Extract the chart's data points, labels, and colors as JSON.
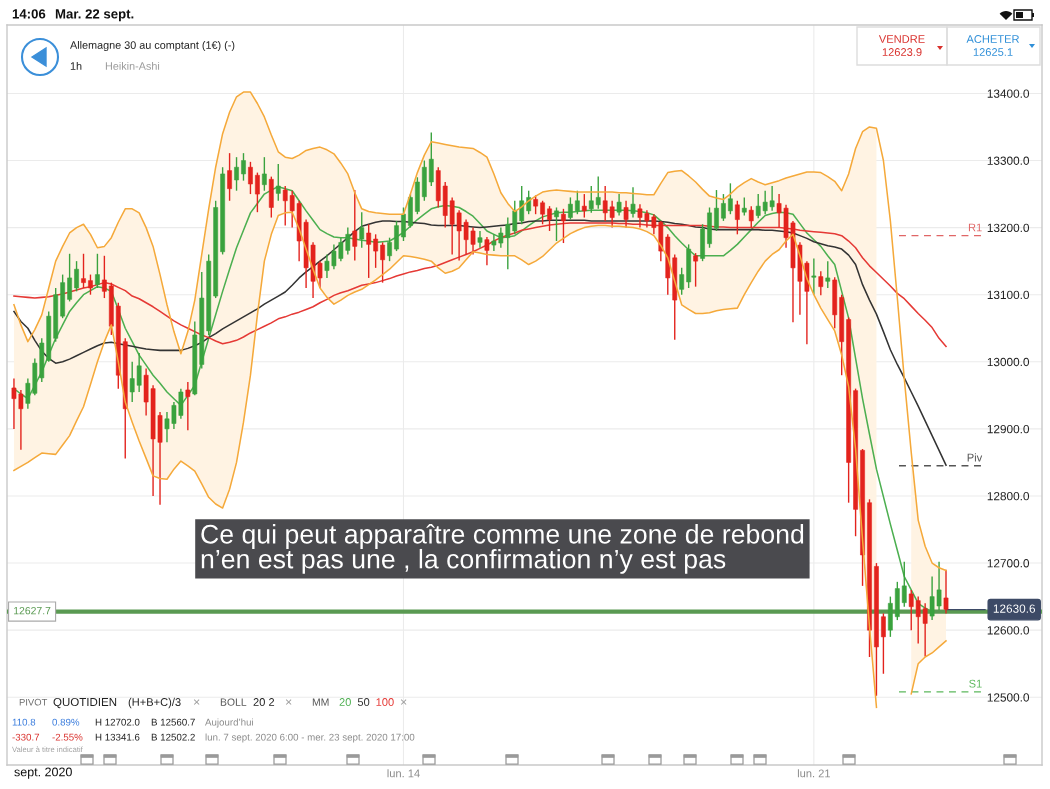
{
  "chart_data": {
    "type": "candlestick",
    "title": "Allemagne 30 au comptant (1€) (-)",
    "subtitle": "1h",
    "xlabel": "sept. 2020",
    "categories": [
      null,
      null,
      null,
      null,
      null,
      null,
      null,
      null,
      null,
      null,
      null,
      null,
      null,
      null,
      null,
      null,
      null,
      null,
      null,
      null,
      null,
      null,
      null,
      null,
      null,
      null,
      null,
      null,
      null,
      null,
      null,
      null,
      null,
      null,
      null,
      null,
      null,
      null,
      null,
      null,
      null,
      null,
      null,
      null,
      null,
      null,
      null,
      null,
      null,
      null,
      null,
      null,
      null,
      null,
      null,
      null,
      "lun. 14",
      null,
      null,
      null,
      null,
      null,
      null,
      null,
      null,
      null,
      null,
      null,
      null,
      null,
      null,
      null,
      null,
      null,
      null,
      null,
      null,
      null,
      null,
      null,
      null,
      null,
      null,
      null,
      null,
      null,
      null,
      null,
      null,
      null,
      null,
      null,
      null,
      null,
      null,
      null,
      null,
      null,
      null,
      null,
      null,
      null,
      null,
      null,
      null,
      null,
      null,
      null,
      null,
      null,
      null,
      null,
      null,
      null,
      null,
      "lun. 21",
      null,
      null,
      null,
      null,
      null,
      null,
      null,
      null,
      null,
      null,
      null,
      null,
      null,
      null,
      null,
      null,
      null,
      null,
      null
    ],
    "ohlc": [
      [
        12961,
        12975,
        12900,
        12945
      ],
      [
        12952,
        12958,
        12869,
        12930
      ],
      [
        12938,
        12975,
        12930,
        12968
      ],
      [
        12953,
        13005,
        12950,
        12998
      ],
      [
        12976,
        13035,
        12970,
        13028
      ],
      [
        13002,
        13075,
        13000,
        13068
      ],
      [
        13035,
        13110,
        13030,
        13100
      ],
      [
        13068,
        13130,
        13065,
        13118
      ],
      [
        13093,
        13161,
        13090,
        13125
      ],
      [
        13110,
        13150,
        13105,
        13138
      ],
      [
        13124,
        13161,
        13110,
        13118
      ],
      [
        13121,
        13130,
        13100,
        13110
      ],
      [
        13115,
        13161,
        13110,
        13130
      ],
      [
        13122,
        13158,
        13095,
        13105
      ],
      [
        13113,
        13118,
        13040,
        13053
      ],
      [
        13083,
        13088,
        12960,
        12980
      ],
      [
        13030,
        13035,
        12856,
        12930
      ],
      [
        12955,
        13000,
        12940,
        12975
      ],
      [
        12965,
        13013,
        12955,
        12994
      ],
      [
        12980,
        12990,
        12920,
        12940
      ],
      [
        12960,
        12965,
        12800,
        12885
      ],
      [
        12920,
        12925,
        12787,
        12880
      ],
      [
        12900,
        12925,
        12880,
        12915
      ],
      [
        12908,
        12940,
        12900,
        12935
      ],
      [
        12920,
        12960,
        12915,
        12955
      ],
      [
        12958,
        12970,
        12898,
        12948
      ],
      [
        12952,
        13060,
        12950,
        13040
      ],
      [
        12996,
        13134,
        12990,
        13095
      ],
      [
        13046,
        13160,
        13040,
        13150
      ],
      [
        13098,
        13240,
        13095,
        13230
      ],
      [
        13164,
        13290,
        13160,
        13280
      ],
      [
        13285,
        13311,
        13240,
        13258
      ],
      [
        13271,
        13305,
        13255,
        13290
      ],
      [
        13280,
        13311,
        13270,
        13300
      ],
      [
        13290,
        13298,
        13250,
        13265
      ],
      [
        13278,
        13282,
        13223,
        13250
      ],
      [
        13264,
        13305,
        13255,
        13280
      ],
      [
        13272,
        13276,
        13215,
        13230
      ],
      [
        13251,
        13295,
        13240,
        13262
      ],
      [
        13256,
        13262,
        13203,
        13240
      ],
      [
        13248,
        13255,
        13200,
        13225
      ],
      [
        13236,
        13240,
        13150,
        13180
      ],
      [
        13208,
        13212,
        13110,
        13140
      ],
      [
        13174,
        13178,
        13095,
        13120
      ],
      [
        13147,
        13150,
        13110,
        13125
      ],
      [
        13136,
        13160,
        13125,
        13150
      ],
      [
        13143,
        13175,
        13138,
        13165
      ],
      [
        13154,
        13185,
        13150,
        13178
      ],
      [
        13166,
        13200,
        13160,
        13190
      ],
      [
        13195,
        13256,
        13151,
        13172
      ],
      [
        13183,
        13223,
        13170,
        13200
      ],
      [
        13192,
        13205,
        13125,
        13175
      ],
      [
        13183,
        13190,
        13140,
        13165
      ],
      [
        13174,
        13178,
        13118,
        13152
      ],
      [
        13158,
        13185,
        13150,
        13178
      ],
      [
        13168,
        13210,
        13165,
        13203
      ],
      [
        13186,
        13230,
        13180,
        13220
      ],
      [
        13203,
        13250,
        13200,
        13245
      ],
      [
        13224,
        13275,
        13220,
        13268
      ],
      [
        13246,
        13300,
        13240,
        13290
      ],
      [
        13268,
        13341.6,
        13262,
        13302
      ],
      [
        13285,
        13290,
        13230,
        13240
      ],
      [
        13262,
        13268,
        13200,
        13218
      ],
      [
        13240,
        13245,
        13160,
        13205
      ],
      [
        13222,
        13226,
        13151,
        13195
      ],
      [
        13208,
        13212,
        13160,
        13182
      ],
      [
        13195,
        13200,
        13160,
        13175
      ],
      [
        13178,
        13195,
        13170,
        13185
      ],
      [
        13182,
        13186,
        13144,
        13166
      ],
      [
        13174,
        13190,
        13165,
        13180
      ],
      [
        13177,
        13200,
        13170,
        13192
      ],
      [
        13185,
        13215,
        13138,
        13205
      ],
      [
        13195,
        13240,
        13190,
        13225
      ],
      [
        13210,
        13262,
        13205,
        13240
      ],
      [
        13225,
        13255,
        13220,
        13245
      ],
      [
        13242,
        13248,
        13220,
        13232
      ],
      [
        13237,
        13240,
        13205,
        13220
      ],
      [
        13228,
        13232,
        13195,
        13212
      ],
      [
        13216,
        13230,
        13180,
        13225
      ],
      [
        13220,
        13228,
        13177,
        13210
      ],
      [
        13215,
        13245,
        13212,
        13235
      ],
      [
        13225,
        13255,
        13220,
        13240
      ],
      [
        13232,
        13250,
        13215,
        13225
      ],
      [
        13228,
        13262,
        13222,
        13240
      ],
      [
        13234,
        13276,
        13228,
        13245
      ],
      [
        13240,
        13262,
        13210,
        13222
      ],
      [
        13231,
        13240,
        13200,
        13215
      ],
      [
        13223,
        13250,
        13218,
        13238
      ],
      [
        13230,
        13240,
        13200,
        13212
      ],
      [
        13221,
        13260,
        13215,
        13235
      ],
      [
        13228,
        13235,
        13200,
        13215
      ],
      [
        13221,
        13226,
        13200,
        13210
      ],
      [
        13216,
        13220,
        13190,
        13200
      ],
      [
        13208,
        13210,
        13150,
        13165
      ],
      [
        13186,
        13190,
        13100,
        13125
      ],
      [
        13155,
        13160,
        13033,
        13092
      ],
      [
        13108,
        13140,
        13100,
        13130
      ],
      [
        13119,
        13175,
        13110,
        13168
      ],
      [
        13158,
        13162,
        13112,
        13150
      ],
      [
        13154,
        13205,
        13150,
        13198
      ],
      [
        13176,
        13230,
        13170,
        13222
      ],
      [
        13199,
        13256,
        13195,
        13229
      ],
      [
        13214,
        13250,
        13210,
        13236
      ],
      [
        13225,
        13266,
        13220,
        13243
      ],
      [
        13234,
        13240,
        13190,
        13212
      ],
      [
        13223,
        13245,
        13218,
        13229
      ],
      [
        13226,
        13232,
        13200,
        13210
      ],
      [
        13218,
        13250,
        13214,
        13232
      ],
      [
        13225,
        13255,
        13220,
        13238
      ],
      [
        13231,
        13262,
        13225,
        13240
      ],
      [
        13236,
        13250,
        13200,
        13222
      ],
      [
        13229,
        13234,
        13170,
        13185
      ],
      [
        13207,
        13210,
        13059,
        13140
      ],
      [
        13174,
        13178,
        13070,
        13120
      ],
      [
        13147,
        13150,
        13026,
        13105
      ],
      [
        13126,
        13154,
        13100,
        13128
      ],
      [
        13127,
        13135,
        13099,
        13112
      ],
      [
        13120,
        13150,
        13110,
        13125
      ],
      [
        13122,
        13126,
        13050,
        13070
      ],
      [
        13096,
        13100,
        12980,
        13030
      ],
      [
        13063,
        13066,
        12790,
        12850
      ],
      [
        12957,
        12960,
        12740,
        12780
      ],
      [
        12868,
        12870,
        12666,
        12712
      ],
      [
        12790,
        12795,
        12560,
        12600
      ],
      [
        12695,
        12700,
        12502.2,
        12575
      ],
      [
        12620,
        12625,
        12535,
        12590
      ],
      [
        12600,
        12650,
        12590,
        12640
      ],
      [
        12620,
        12672,
        12615,
        12662
      ],
      [
        12641,
        12702,
        12635,
        12666
      ],
      [
        12654,
        12660,
        12600,
        12635
      ],
      [
        12644,
        12650,
        12580,
        12620
      ],
      [
        12632,
        12640,
        12560.7,
        12610
      ],
      [
        12621,
        12680,
        12615,
        12650
      ],
      [
        12636,
        12702,
        12630,
        12660
      ],
      [
        12648,
        12690,
        12625,
        12631
      ]
    ],
    "ylim": [
      12399,
      13502
    ],
    "yticks": [
      {
        "value": 12500,
        "label": "12500.0"
      },
      {
        "value": 12600,
        "label": "12600.0"
      },
      {
        "value": 12700,
        "label": "12700.0"
      },
      {
        "value": 12800,
        "label": "12800.0"
      },
      {
        "value": 12900,
        "label": "12900.0"
      },
      {
        "value": 13000,
        "label": "13000.0"
      },
      {
        "value": 13100,
        "label": "13100.0"
      },
      {
        "value": 13200,
        "label": "13200.0"
      },
      {
        "value": 13300,
        "label": "13300.0"
      },
      {
        "value": 13400,
        "label": "13400.0"
      }
    ],
    "grid": true,
    "legend": "bottom left",
    "series": [
      {
        "type": "line",
        "name": "20",
        "color": "#4caf50",
        "values": [
          12960,
          12952,
          12945,
          12965,
          12985,
          13010,
          13035,
          13055,
          13075,
          13088,
          13100,
          13106,
          13112,
          13110,
          13105,
          13078,
          13050,
          13030,
          13010,
          12995,
          12980,
          12968,
          12955,
          12945,
          12935,
          12950,
          12965,
          13000,
          13035,
          13070,
          13105,
          13138,
          13170,
          13196,
          13222,
          13236,
          13250,
          13256,
          13261,
          13258,
          13255,
          13240,
          13225,
          13211,
          13197,
          13191,
          13186,
          13185,
          13185,
          13183,
          13181,
          13180,
          13178,
          13179,
          13180,
          13186,
          13193,
          13202,
          13212,
          13220,
          13228,
          13231,
          13233,
          13232,
          13230,
          13224,
          13217,
          13206,
          13195,
          13190,
          13185,
          13186,
          13188,
          13195,
          13203,
          13210,
          13216,
          13219,
          13222,
          13223,
          13223,
          13224,
          13225,
          13226,
          13226,
          13226,
          13226,
          13226,
          13226,
          13225,
          13224,
          13222,
          13219,
          13210,
          13200,
          13188,
          13177,
          13167,
          13158,
          13158,
          13158,
          13158,
          13158,
          13166,
          13175,
          13186,
          13197,
          13208,
          13218,
          13221,
          13223,
          13222,
          13220,
          13206,
          13192,
          13182,
          13172,
          13158,
          13145,
          13105,
          13065,
          13005,
          12945,
          12892,
          12840,
          12799,
          12758,
          12719,
          12680,
          12660,
          12640,
          12633,
          12627,
          12627,
          12627
        ],
        "upper": [
          13085,
          13055,
          13030,
          13048,
          13070,
          13110,
          13150,
          13172,
          13192,
          13200,
          13205,
          13190,
          13170,
          13172,
          13185,
          13208,
          13228,
          13228,
          13222,
          13200,
          13172,
          13130,
          13085,
          13045,
          13012,
          13045,
          13092,
          13160,
          13228,
          13290,
          13340,
          13372,
          13395,
          13402,
          13402,
          13385,
          13365,
          13338,
          13313,
          13305,
          13303,
          13308,
          13315,
          13318,
          13320,
          13316,
          13310,
          13296,
          13280,
          13252,
          13228,
          13224,
          13222,
          13221,
          13220,
          13220,
          13220,
          13250,
          13282,
          13308,
          13328,
          13326,
          13324,
          13322,
          13320,
          13319,
          13318,
          13312,
          13305,
          13280,
          13252,
          13236,
          13224,
          13231,
          13240,
          13247,
          13253,
          13255,
          13256,
          13255,
          13254,
          13253,
          13253,
          13253,
          13253,
          13253,
          13253,
          13252,
          13252,
          13251,
          13250,
          13249,
          13249,
          13266,
          13282,
          13284,
          13285,
          13277,
          13268,
          13257,
          13247,
          13244,
          13242,
          13250,
          13260,
          13267,
          13273,
          13268,
          13264,
          13267,
          13270,
          13274,
          13277,
          13280,
          13283,
          13283,
          13282,
          13276,
          13269,
          13255,
          13280,
          13318,
          13343,
          13350,
          13348,
          null,
          null,
          null,
          null,
          12865,
          12764,
          12725,
          12700,
          12693,
          12689
        ],
        "lower": [
          12838,
          12844,
          12850,
          12857,
          12864,
          12863,
          12862,
          12876,
          12890,
          12912,
          12933,
          12966,
          13000,
          13030,
          13055,
          13000,
          12940,
          12910,
          12882,
          12856,
          12830,
          12826,
          12825,
          12840,
          12852,
          12845,
          12837,
          12818,
          12798,
          12788,
          12782,
          12810,
          12850,
          12910,
          12980,
          13070,
          13150,
          13190,
          13218,
          13222,
          13223,
          13198,
          13168,
          13138,
          13110,
          13096,
          13086,
          13092,
          13099,
          13104,
          13108,
          13115,
          13122,
          13130,
          13138,
          13148,
          13158,
          13157,
          13155,
          13153,
          13150,
          13140,
          13132,
          13135,
          13140,
          13152,
          13164,
          13162,
          13160,
          13159,
          13158,
          13158,
          13158,
          13152,
          13145,
          13150,
          13157,
          13167,
          13177,
          13184,
          13191,
          13196,
          13200,
          13202,
          13203,
          13203,
          13202,
          13202,
          13201,
          13200,
          13198,
          13194,
          13188,
          13173,
          13155,
          13120,
          13085,
          13078,
          13072,
          13072,
          13073,
          13076,
          13078,
          13079,
          13080,
          13100,
          13118,
          13135,
          13150,
          13160,
          13167,
          13180,
          13190,
          13158,
          13124,
          13100,
          13080,
          13063,
          13046,
          13010,
          12963,
          12870,
          12735,
          12605,
          12485,
          null,
          null,
          null,
          null,
          12505,
          12550,
          12560,
          12566,
          12575,
          12584
        ]
      },
      {
        "type": "line",
        "color": "#f5a93a",
        "values": [
          13085,
          13055,
          13030,
          13048,
          13070,
          13110,
          13150,
          13172,
          13192,
          13200,
          13205,
          13190,
          13170,
          13172,
          13185,
          13208,
          13228,
          13228,
          13222,
          13200,
          13172,
          13130,
          13085,
          13045,
          13012,
          13045,
          13092,
          13160,
          13228,
          13290,
          13340,
          13372,
          13395,
          13402,
          13402,
          13385,
          13365,
          13338,
          13313,
          13305,
          13303,
          13308,
          13315,
          13318,
          13320,
          13316,
          13310,
          13296,
          13280,
          13252,
          13228,
          13224,
          13222,
          13221,
          13220,
          13220,
          13220,
          13250,
          13282,
          13308,
          13328,
          13326,
          13324,
          13322,
          13320,
          13319,
          13318,
          13312,
          13305,
          13280,
          13252,
          13236,
          13224,
          13231,
          13240,
          13247,
          13253,
          13255,
          13256,
          13255,
          13254,
          13253,
          13253,
          13253,
          13253,
          13253,
          13253,
          13252,
          13252,
          13251,
          13250,
          13249,
          13249,
          13266,
          13282,
          13284,
          13285,
          13277,
          13268,
          13257,
          13247,
          13244,
          13242,
          13250,
          13260,
          13267,
          13273,
          13268,
          13264,
          13267,
          13270,
          13274,
          13277,
          13280,
          13283,
          13283,
          13282,
          13276,
          13269,
          13255,
          13280,
          13318,
          13343,
          13350,
          13348,
          13300,
          13210,
          13095,
          12975,
          12865,
          12764,
          12725,
          12700,
          12693,
          12689
        ]
      },
      {
        "type": "line",
        "color": "#f5a93a",
        "values": [
          12838,
          12844,
          12850,
          12857,
          12864,
          12863,
          12862,
          12876,
          12890,
          12912,
          12933,
          12966,
          13000,
          13030,
          13055,
          13000,
          12940,
          12910,
          12882,
          12856,
          12830,
          12826,
          12825,
          12840,
          12852,
          12845,
          12837,
          12818,
          12798,
          12788,
          12782,
          12810,
          12850,
          12910,
          12980,
          13070,
          13150,
          13190,
          13218,
          13222,
          13223,
          13198,
          13168,
          13138,
          13110,
          13096,
          13086,
          13092,
          13099,
          13104,
          13108,
          13115,
          13122,
          13130,
          13138,
          13148,
          13158,
          13157,
          13155,
          13153,
          13150,
          13140,
          13132,
          13135,
          13140,
          13152,
          13164,
          13162,
          13160,
          13159,
          13158,
          13158,
          13158,
          13152,
          13145,
          13150,
          13157,
          13167,
          13177,
          13184,
          13191,
          13196,
          13200,
          13202,
          13203,
          13203,
          13202,
          13202,
          13201,
          13200,
          13198,
          13194,
          13188,
          13173,
          13155,
          13120,
          13085,
          13078,
          13072,
          13072,
          13073,
          13076,
          13078,
          13079,
          13080,
          13100,
          13118,
          13135,
          13150,
          13160,
          13167,
          13180,
          13190,
          13158,
          13124,
          13100,
          13080,
          13063,
          13046,
          13010,
          12963,
          12870,
          12735,
          12605,
          12485,
          null,
          null,
          null,
          null,
          12505,
          12550,
          12560,
          12566,
          12575,
          12584
        ]
      },
      {
        "type": "line",
        "name": "50",
        "color": "#333333",
        "values": [
          13075,
          13060,
          13050,
          13032,
          13016,
          13005,
          12998,
          13000,
          13004,
          13009,
          13014,
          13019,
          13024,
          13028,
          13029,
          13027,
          13025,
          13023,
          13021,
          13019,
          13018,
          13017,
          13017,
          13017,
          13017,
          13020,
          13024,
          13029,
          13036,
          13042,
          13049,
          13055,
          13061,
          13067,
          13073,
          13079,
          13086,
          13092,
          13098,
          13104,
          13114,
          13125,
          13134,
          13142,
          13150,
          13158,
          13167,
          13176,
          13185,
          13194,
          13202,
          13205,
          13208,
          13210,
          13210,
          13209,
          13209,
          13208,
          13207,
          13206,
          13204,
          13203,
          13203,
          13203,
          13203,
          13202,
          13201,
          13200,
          13201,
          13202,
          13203,
          13204,
          13206,
          13207,
          13209,
          13210,
          13210,
          13211,
          13211,
          13211,
          13211,
          13211,
          13211,
          13210,
          13210,
          13210,
          13210,
          13210,
          13210,
          13210,
          13210,
          13210,
          13210,
          13209,
          13208,
          13206,
          13205,
          13203,
          13201,
          13200,
          13198,
          13197,
          13197,
          13197,
          13197,
          13197,
          13197,
          13197,
          13196,
          13196,
          13195,
          13194,
          13192,
          13188,
          13184,
          13179,
          13176,
          13173,
          13171,
          13168,
          13159,
          13145,
          13115,
          13092,
          13071,
          13045,
          13018,
          12996,
          12976,
          12955,
          12934,
          12912,
          12890,
          12868,
          12846
        ]
      },
      {
        "type": "line",
        "name": "100",
        "color": "#e53935",
        "values": [
          13098,
          13097,
          13096,
          13095,
          13096,
          13097,
          13099,
          13101,
          13104,
          13107,
          13110,
          13112,
          13115,
          13118,
          13116,
          13111,
          13106,
          13098,
          13094,
          13088,
          13082,
          13075,
          13068,
          13061,
          13055,
          13050,
          13045,
          13040,
          13036,
          13031,
          13027,
          13029,
          13032,
          13037,
          13043,
          13048,
          13053,
          13058,
          13064,
          13067,
          13071,
          13074,
          13078,
          13082,
          13088,
          13093,
          13099,
          13103,
          13106,
          13110,
          13114,
          13116,
          13118,
          13121,
          13124,
          13128,
          13131,
          13134,
          13136,
          13139,
          13141,
          13144,
          13148,
          13152,
          13156,
          13160,
          13164,
          13169,
          13174,
          13180,
          13185,
          13189,
          13192,
          13196,
          13198,
          13200,
          13202,
          13204,
          13205,
          13206,
          13207,
          13207,
          13207,
          13207,
          13207,
          13207,
          13207,
          13206,
          13206,
          13205,
          13205,
          13204,
          13203,
          13203,
          13203,
          13203,
          13203,
          13203,
          13203,
          13203,
          13202,
          13201,
          13201,
          13200,
          13200,
          13200,
          13200,
          13200,
          13200,
          13200,
          13200,
          13199,
          13198,
          13196,
          13195,
          13194,
          13193,
          13192,
          13191,
          13188,
          13180,
          13170,
          13155,
          13143,
          13133,
          13123,
          13113,
          13102,
          13094,
          13083,
          13072,
          13062,
          13051,
          13035,
          13023
        ]
      }
    ],
    "ref_lines": [
      {
        "axis": "y",
        "value": 13188,
        "label": "R1",
        "color": "#e06666",
        "line_style": "dashed"
      },
      {
        "axis": "y",
        "value": 12845,
        "label": "Piv",
        "color": "#555555",
        "line_style": "dashed"
      },
      {
        "axis": "y",
        "value": 12508,
        "label": "S1",
        "color": "#5cb85c",
        "line_style": "dashed"
      },
      {
        "axis": "y",
        "value": 12627.7,
        "label": "12627.7",
        "color": "#5a9a52",
        "line_style": "solid"
      },
      {
        "axis": "y",
        "value": 12630.6,
        "label": "12630.6",
        "color": "#3d4a66",
        "line_style": "solid"
      }
    ],
    "annotations": [
      "14:06",
      "Mar. 22 sept.",
      "VENDRE",
      "12623.9",
      "ACHETER",
      "12625.1",
      "Heikin-Ashi",
      "PIVOT",
      "QUOTIDIEN",
      "(H+B+C)/3",
      "×",
      "BOLL",
      "20 2",
      "×",
      "MM",
      "×",
      "110.8",
      "0.89%",
      "H 12702.0",
      "B 12560.7",
      "Aujourd’hui",
      "-330.7",
      "-2.55%",
      "H 13341.6",
      "B 12502.2",
      "lun. 7 sept. 2020 6:00 - mer. 23 sept. 2020 17:00",
      "Valeur à titre indicatif",
      "Ce qui peut apparaître comme une zone de rebond\nn’en est pas une , la confirmation n’y est pas"
    ]
  }
}
